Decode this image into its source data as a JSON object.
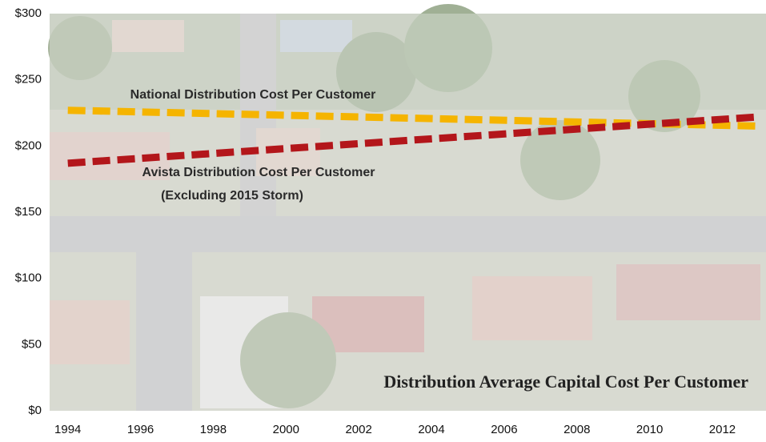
{
  "chart_data": {
    "type": "line",
    "title": "Distribution Average Capital Cost Per Customer",
    "annotations": [
      "(Excluding 2015 Storm)"
    ],
    "x": [
      1994,
      2013
    ],
    "series": [
      {
        "name": "National Distribution Cost Per Customer",
        "color": "#f5b400",
        "values": [
          227,
          215
        ]
      },
      {
        "name": "Avista Distribution Cost Per Customer",
        "color": "#b3161b",
        "values": [
          187,
          222
        ]
      }
    ],
    "xlim": [
      1993.5,
      2013.2
    ],
    "xticks": [
      1994,
      1996,
      1998,
      2000,
      2002,
      2004,
      2006,
      2008,
      2010,
      2012
    ],
    "ylim": [
      0,
      300
    ],
    "yticks": [
      {
        "value": 0,
        "label": "$0"
      },
      {
        "value": 50,
        "label": "$50"
      },
      {
        "value": 100,
        "label": "$100"
      },
      {
        "value": 150,
        "label": "$150"
      },
      {
        "value": 200,
        "label": "$200"
      },
      {
        "value": 250,
        "label": "$250"
      },
      {
        "value": 300,
        "label": "$300"
      }
    ],
    "grid": false
  }
}
